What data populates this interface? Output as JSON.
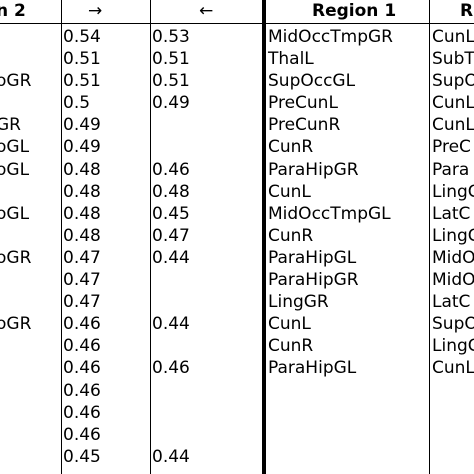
{
  "headers": {
    "region2": "n 2",
    "forward": "→",
    "backward": "←",
    "region1": "Region 1",
    "region3": "R"
  },
  "rows": [
    {
      "r2": "",
      "fwd": "0.54",
      "bwd": "0.53",
      "r1": "MidOccTmpGR",
      "r3": "CunL"
    },
    {
      "r2": "",
      "fwd": "0.51",
      "bwd": "0.51",
      "r1": "ThalL",
      "r3": "SubT"
    },
    {
      "r2": "oGR",
      "fwd": "0.51",
      "bwd": "0.51",
      "r1": "SupOccGL",
      "r3": "SupO"
    },
    {
      "r2": "",
      "fwd": "0.5",
      "bwd": "0.49",
      "r1": "PreCunL",
      "r3": "CunL"
    },
    {
      "r2": "GR",
      "fwd": "0.49",
      "bwd": "",
      "r1": "PreCunR",
      "r3": "CunL"
    },
    {
      "r2": "oGL",
      "fwd": "0.49",
      "bwd": "",
      "r1": "CunR",
      "r3": "PreC"
    },
    {
      "r2": "oGL",
      "fwd": "0.48",
      "bwd": "0.46",
      "r1": "ParaHipGR",
      "r3": "Para"
    },
    {
      "r2": "",
      "fwd": "0.48",
      "bwd": "0.48",
      "r1": "CunL",
      "r3": "LingG"
    },
    {
      "r2": "oGL",
      "fwd": "0.48",
      "bwd": "0.45",
      "r1": "MidOccTmpGL",
      "r3": "LatC"
    },
    {
      "r2": "",
      "fwd": "0.48",
      "bwd": "0.47",
      "r1": "CunR",
      "r3": "LingG"
    },
    {
      "r2": "oGR",
      "fwd": "0.47",
      "bwd": "0.44",
      "r1": "ParaHipGL",
      "r3": "MidO"
    },
    {
      "r2": "",
      "fwd": "0.47",
      "bwd": "",
      "r1": "ParaHipGR",
      "r3": "MidO"
    },
    {
      "r2": "",
      "fwd": "0.47",
      "bwd": "",
      "r1": "LingGR",
      "r3": "LatC"
    },
    {
      "r2": "oGR",
      "fwd": "0.46",
      "bwd": "0.44",
      "r1": "CunL",
      "r3": "SupO"
    },
    {
      "r2": "",
      "fwd": "0.46",
      "bwd": "",
      "r1": "CunR",
      "r3": "LingG"
    },
    {
      "r2": "",
      "fwd": "0.46",
      "bwd": "0.46",
      "r1": "ParaHipGL",
      "r3": "CunL"
    },
    {
      "r2": "",
      "fwd": "0.46",
      "bwd": "",
      "r1": "",
      "r3": ""
    },
    {
      "r2": "",
      "fwd": "0.46",
      "bwd": "",
      "r1": "",
      "r3": ""
    },
    {
      "r2": "",
      "fwd": "0.46",
      "bwd": "",
      "r1": "",
      "r3": ""
    },
    {
      "r2": "",
      "fwd": "0.45",
      "bwd": "0.44",
      "r1": "",
      "r3": ""
    }
  ]
}
